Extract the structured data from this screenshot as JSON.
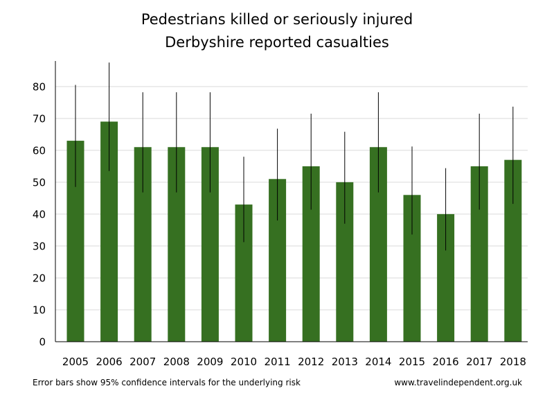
{
  "chart_data": {
    "type": "bar",
    "title": "Pedestrians killed or seriously injured",
    "subtitle": "Derbyshire reported casualties",
    "categories": [
      "2005",
      "2006",
      "2007",
      "2008",
      "2009",
      "2010",
      "2011",
      "2012",
      "2013",
      "2014",
      "2015",
      "2016",
      "2017",
      "2018"
    ],
    "values": [
      63,
      69,
      61,
      61,
      61,
      43,
      51,
      55,
      50,
      61,
      46,
      40,
      55,
      57
    ],
    "error_low": [
      48.5,
      53.5,
      46.8,
      46.8,
      46.8,
      31.2,
      38,
      41.4,
      37,
      46.8,
      33.6,
      28.6,
      41.4,
      43.2
    ],
    "error_high": [
      80.5,
      87.5,
      78.2,
      78.2,
      78.2,
      58,
      66.8,
      71.5,
      65.8,
      78.2,
      61.2,
      54.4,
      71.5,
      73.7
    ],
    "ylim": [
      0,
      88
    ],
    "yticks": [
      0,
      10,
      20,
      30,
      40,
      50,
      60,
      70,
      80
    ],
    "grid": true,
    "bar_color": "#367021",
    "grid_color": "#e6e6e6",
    "xlabel": "",
    "ylabel": ""
  },
  "footer": {
    "note": "Error bars show 95% confidence intervals for the underlying risk",
    "source": "www.travelindependent.org.uk"
  }
}
